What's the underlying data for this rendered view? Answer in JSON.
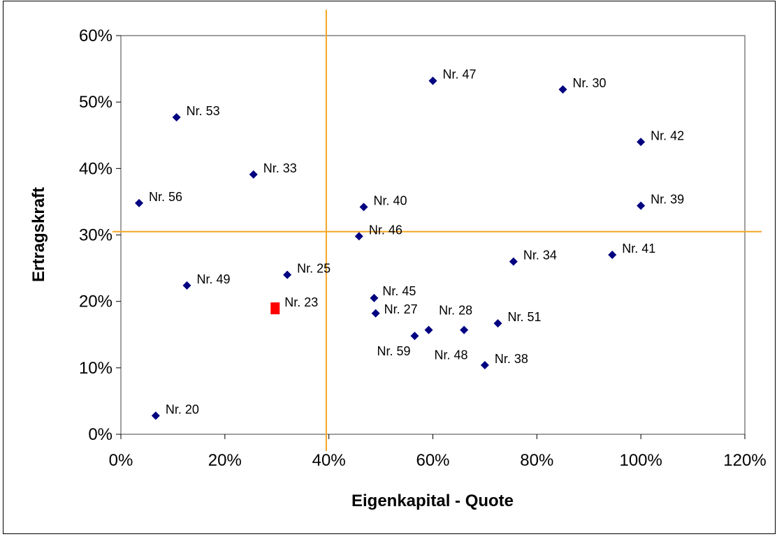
{
  "chart_data": {
    "type": "scatter",
    "xlabel": "Eigenkapital - Quote",
    "ylabel": "Ertragskraft",
    "xlim": [
      0,
      1.2
    ],
    "ylim": [
      0,
      0.6
    ],
    "x_ticks": [
      "0%",
      "20%",
      "40%",
      "60%",
      "80%",
      "100%",
      "120%"
    ],
    "y_ticks": [
      "0%",
      "10%",
      "20%",
      "30%",
      "40%",
      "50%",
      "60%"
    ],
    "grid": false,
    "legend": "none",
    "marker_color": "#000080",
    "highlight_color": "#ff0000",
    "reference_line_color": "#f5a623",
    "reference_lines": {
      "x": 0.395,
      "y": 0.305
    },
    "points": [
      {
        "label": "Nr. 47",
        "x": 0.6,
        "y": 0.532
      },
      {
        "label": "Nr. 30",
        "x": 0.85,
        "y": 0.519
      },
      {
        "label": "Nr. 53",
        "x": 0.107,
        "y": 0.477
      },
      {
        "label": "Nr. 42",
        "x": 1.0,
        "y": 0.44
      },
      {
        "label": "Nr. 33",
        "x": 0.255,
        "y": 0.391
      },
      {
        "label": "Nr. 56",
        "x": 0.035,
        "y": 0.348
      },
      {
        "label": "Nr. 40",
        "x": 0.467,
        "y": 0.342
      },
      {
        "label": "Nr. 39",
        "x": 1.0,
        "y": 0.344
      },
      {
        "label": "Nr. 46",
        "x": 0.458,
        "y": 0.298
      },
      {
        "label": "Nr. 41",
        "x": 0.945,
        "y": 0.27
      },
      {
        "label": "Nr. 34",
        "x": 0.755,
        "y": 0.26
      },
      {
        "label": "Nr. 25",
        "x": 0.32,
        "y": 0.24
      },
      {
        "label": "Nr. 49",
        "x": 0.127,
        "y": 0.224
      },
      {
        "label": "Nr. 45",
        "x": 0.487,
        "y": 0.205
      },
      {
        "label": "Nr. 23",
        "x": 0.296,
        "y": 0.189,
        "highlight": true
      },
      {
        "label": "Nr. 27",
        "x": 0.49,
        "y": 0.182
      },
      {
        "label": "Nr. 28",
        "x": 0.66,
        "y": 0.157
      },
      {
        "label": "Nr. 48",
        "x": 0.592,
        "y": 0.157
      },
      {
        "label": "Nr. 51",
        "x": 0.725,
        "y": 0.167
      },
      {
        "label": "Nr. 59",
        "x": 0.565,
        "y": 0.148
      },
      {
        "label": "Nr. 38",
        "x": 0.7,
        "y": 0.104
      },
      {
        "label": "Nr. 20",
        "x": 0.067,
        "y": 0.028
      }
    ]
  }
}
